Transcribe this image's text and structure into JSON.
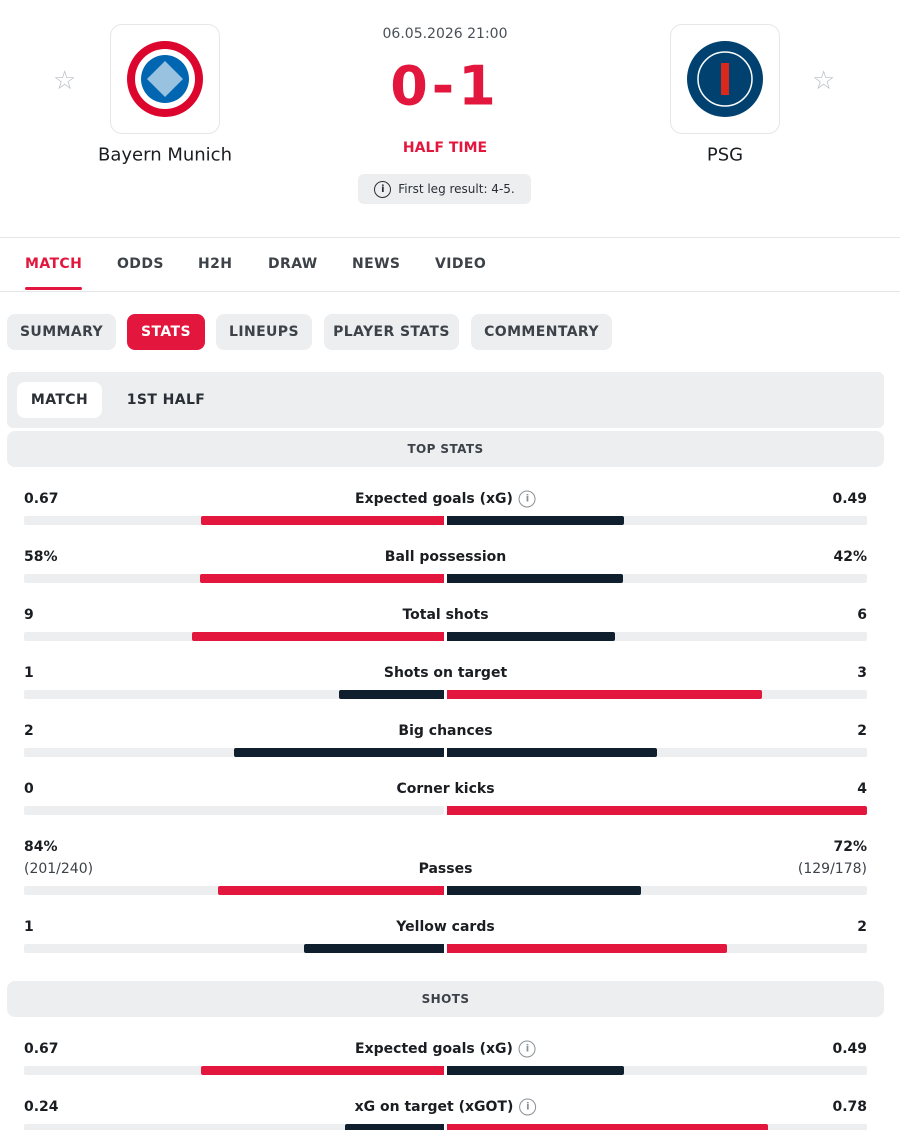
{
  "match": {
    "datetime": "06.05.2026 21:00",
    "home_team": "Bayern Munich",
    "away_team": "PSG",
    "score": "0-1",
    "status": "HALF TIME",
    "note": "First leg result: 4-5."
  },
  "tabs": [
    "MATCH",
    "ODDS",
    "H2H",
    "DRAW",
    "NEWS",
    "VIDEO"
  ],
  "active_tab": 0,
  "subtabs": [
    "SUMMARY",
    "STATS",
    "LINEUPS",
    "PLAYER STATS",
    "COMMENTARY"
  ],
  "active_subtab": 1,
  "period_tabs": [
    "MATCH",
    "1ST HALF"
  ],
  "active_period": 0,
  "colors": {
    "accent": "#e3173e",
    "dark": "#0f1f2d"
  },
  "sections": [
    {
      "title": "TOP STATS",
      "stats": [
        {
          "name": "Expected goals (xG)",
          "info": true,
          "home": 0.67,
          "away": 0.49
        },
        {
          "name": "Ball possession",
          "home": {
            "value": 58,
            "label": "58%"
          },
          "away": {
            "value": 42,
            "label": "42%"
          }
        },
        {
          "name": "Total shots",
          "home": 9,
          "away": 6
        },
        {
          "name": "Shots on target",
          "home": 1,
          "away": 3
        },
        {
          "name": "Big chances",
          "home": 2,
          "away": 2
        },
        {
          "name": "Corner kicks",
          "home": 0,
          "away": 4
        },
        {
          "name": "Passes",
          "home": {
            "value": 84,
            "label": "84%"
          },
          "away": {
            "value": 72,
            "label": "72%"
          },
          "home_detail": "(201/240)",
          "away_detail": "(129/178)"
        },
        {
          "name": "Yellow cards",
          "home": 1,
          "away": 2
        }
      ]
    },
    {
      "title": "SHOTS",
      "stats": [
        {
          "name": "Expected goals (xG)",
          "info": true,
          "home": 0.67,
          "away": 0.49
        },
        {
          "name": "xG on target (xGOT)",
          "info": true,
          "home": 0.24,
          "away": 0.78
        }
      ]
    }
  ]
}
